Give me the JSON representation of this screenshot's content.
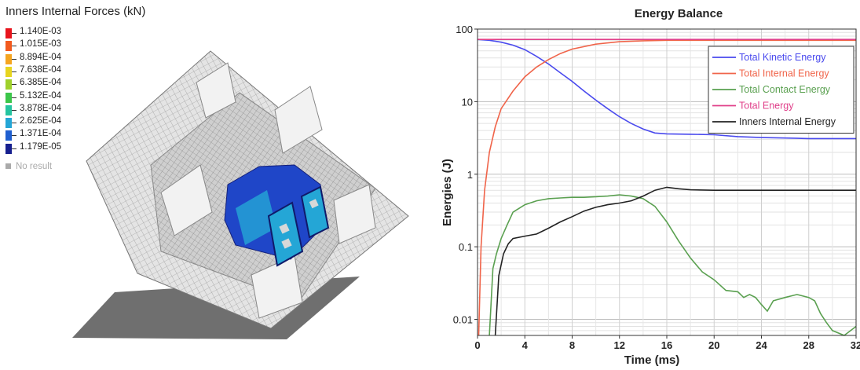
{
  "contour": {
    "title": "Inners Internal Forces (kN)",
    "levels": [
      {
        "label": "1.140E-03",
        "color": "#e8141c"
      },
      {
        "label": "1.015E-03",
        "color": "#f25a1e"
      },
      {
        "label": "8.894E-04",
        "color": "#f5a520"
      },
      {
        "label": "7.638E-04",
        "color": "#e7d51f"
      },
      {
        "label": "6.385E-04",
        "color": "#9fd12b"
      },
      {
        "label": "5.132E-04",
        "color": "#3cc64a"
      },
      {
        "label": "3.878E-04",
        "color": "#25c4a0"
      },
      {
        "label": "2.625E-04",
        "color": "#24a6d6"
      },
      {
        "label": "1.371E-04",
        "color": "#1f5fd0"
      },
      {
        "label": "1.179E-05",
        "color": "#17208f"
      }
    ],
    "no_result_label": "No result",
    "no_result_color": "#aaaaaa"
  },
  "chart_data": {
    "type": "line",
    "title": "Energy Balance",
    "xlabel": "Time (ms)",
    "ylabel": "Energies (J)",
    "xlim": [
      0,
      32
    ],
    "ylim": [
      0.006,
      100
    ],
    "yscale": "log",
    "grid": true,
    "legend_position": "top-right",
    "x_ticks": [
      "0",
      "4",
      "8",
      "12",
      "16",
      "20",
      "24",
      "28",
      "32"
    ],
    "y_ticks": [
      {
        "value": 100,
        "label": "100"
      },
      {
        "value": 10,
        "label": "10"
      },
      {
        "value": 1,
        "label": "1"
      },
      {
        "value": 0.1,
        "label": "0.1"
      },
      {
        "value": 0.01,
        "label": "0.01"
      }
    ],
    "series": [
      {
        "name": "Total Kinetic Energy",
        "color": "#4a4aee",
        "x": [
          0,
          1,
          2,
          3,
          4,
          5,
          6,
          7,
          8,
          9,
          10,
          11,
          12,
          13,
          14,
          15,
          16,
          18,
          20,
          22,
          24,
          26,
          28,
          30,
          32
        ],
        "y": [
          72,
          70,
          66,
          60,
          52,
          42,
          33,
          25,
          19,
          14,
          10.5,
          8,
          6.2,
          5,
          4.2,
          3.7,
          3.6,
          3.55,
          3.5,
          3.3,
          3.2,
          3.15,
          3.1,
          3.1,
          3.1
        ]
      },
      {
        "name": "Total Internal Energy",
        "color": "#f0644a",
        "x": [
          0.1,
          0.3,
          0.6,
          1,
          1.5,
          2,
          3,
          4,
          5,
          6,
          7,
          8,
          10,
          12,
          14,
          16,
          20,
          24,
          28,
          32
        ],
        "y": [
          0.006,
          0.1,
          0.6,
          2,
          4.5,
          8,
          14,
          22,
          30,
          38,
          46,
          53,
          62,
          67,
          69,
          70,
          70,
          70,
          70,
          70
        ]
      },
      {
        "name": "Total Contact Energy",
        "color": "#5aa050",
        "x": [
          1,
          1.3,
          1.6,
          2,
          2.5,
          3,
          4,
          5,
          6,
          7,
          8,
          9,
          10,
          11,
          12,
          13,
          14,
          15,
          16,
          17,
          18,
          19,
          20,
          21,
          22,
          22.5,
          23,
          23.5,
          24,
          24.5,
          25,
          26,
          27,
          28,
          28.5,
          29,
          29.5,
          30,
          31,
          32
        ],
        "y": [
          0.006,
          0.05,
          0.08,
          0.13,
          0.2,
          0.3,
          0.38,
          0.43,
          0.46,
          0.47,
          0.48,
          0.48,
          0.49,
          0.5,
          0.52,
          0.5,
          0.46,
          0.36,
          0.22,
          0.12,
          0.07,
          0.045,
          0.035,
          0.025,
          0.024,
          0.02,
          0.022,
          0.02,
          0.016,
          0.013,
          0.018,
          0.02,
          0.022,
          0.02,
          0.018,
          0.012,
          0.009,
          0.007,
          0.006,
          0.008
        ]
      },
      {
        "name": "Total Energy",
        "color": "#e0408a",
        "x": [
          0,
          32
        ],
        "y": [
          72,
          72
        ]
      },
      {
        "name": "Inners Internal Energy",
        "color": "#222222",
        "x": [
          1.5,
          1.8,
          2.2,
          2.6,
          3,
          4,
          5,
          6,
          7,
          8,
          9,
          10,
          11,
          12,
          13,
          14,
          15,
          16,
          17,
          18,
          20,
          24,
          28,
          32
        ],
        "y": [
          0.006,
          0.04,
          0.08,
          0.11,
          0.13,
          0.14,
          0.15,
          0.18,
          0.22,
          0.26,
          0.31,
          0.35,
          0.38,
          0.4,
          0.43,
          0.5,
          0.6,
          0.66,
          0.63,
          0.61,
          0.6,
          0.6,
          0.6,
          0.6
        ]
      }
    ]
  }
}
